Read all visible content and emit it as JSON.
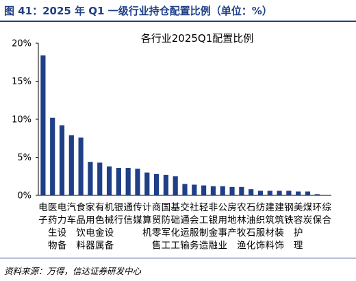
{
  "header": {
    "title": "图 41：2025 年 Q1 一级行业持仓配置比例（单位：%）"
  },
  "footer": {
    "source": "资料来源：万得，信达证券研发中心"
  },
  "chart_data": {
    "type": "bar",
    "title": "各行业2025Q1配置比例",
    "xlabel": "",
    "ylabel": "",
    "ylim": [
      0,
      20
    ],
    "yticks": [
      "0%",
      "5%",
      "10%",
      "15%",
      "20%"
    ],
    "grid": false,
    "legend": "none",
    "bar_color": "#1f3f86",
    "categories": [
      "电子",
      "医药生物",
      "电力设备",
      "汽车",
      "食品饮料",
      "家用电器",
      "有色金属",
      "机械设备",
      "银行",
      "通信",
      "传媒",
      "计算机",
      "商贸零售",
      "国防军工",
      "基础化工",
      "交通运输",
      "社会服务",
      "轻工制造",
      "非银金融",
      "公用事业",
      "房地产",
      "农林牧渔",
      "石油石化",
      "纺织服饰",
      "建筑材料",
      "建筑装饰",
      "钢铁",
      "美容护理",
      "煤炭",
      "环保",
      "综合"
    ],
    "values": [
      18.4,
      10.2,
      9.2,
      7.9,
      7.6,
      4.4,
      4.3,
      3.8,
      3.6,
      3.6,
      3.5,
      3.0,
      2.8,
      2.7,
      2.5,
      1.5,
      1.4,
      1.3,
      1.2,
      1.2,
      1.1,
      1.1,
      0.8,
      0.6,
      0.6,
      0.6,
      0.6,
      0.5,
      0.5,
      0.15,
      0.0
    ],
    "tick_labels": [
      [
        "电",
        "子",
        "",
        ""
      ],
      [
        "医",
        "药",
        "生",
        "物"
      ],
      [
        "电",
        "力",
        "设",
        "备"
      ],
      [
        "汽",
        "车",
        "",
        ""
      ],
      [
        "食",
        "品",
        "饮",
        "料"
      ],
      [
        "家",
        "用",
        "电",
        "器"
      ],
      [
        "有",
        "色",
        "金",
        "属"
      ],
      [
        "机",
        "械",
        "设",
        "备"
      ],
      [
        "银",
        "行",
        "",
        ""
      ],
      [
        "通",
        "信",
        "",
        ""
      ],
      [
        "传",
        "媒",
        "",
        ""
      ],
      [
        "计",
        "算",
        "机",
        ""
      ],
      [
        "商",
        "贸",
        "零",
        "售"
      ],
      [
        "国",
        "防",
        "军",
        "工"
      ],
      [
        "基",
        "础",
        "化",
        "工"
      ],
      [
        "交",
        "通",
        "运",
        "输"
      ],
      [
        "社",
        "会",
        "服",
        "务"
      ],
      [
        "轻",
        "工",
        "制",
        "造"
      ],
      [
        "非",
        "银",
        "金",
        "融"
      ],
      [
        "公",
        "用",
        "事",
        "业"
      ],
      [
        "房",
        "地",
        "产",
        ""
      ],
      [
        "农",
        "林",
        "牧",
        "渔"
      ],
      [
        "石",
        "油",
        "石",
        "化"
      ],
      [
        "纺",
        "织",
        "服",
        "饰"
      ],
      [
        "建",
        "筑",
        "材",
        "料"
      ],
      [
        "建",
        "筑",
        "装",
        "饰"
      ],
      [
        "钢",
        "铁",
        "",
        ""
      ],
      [
        "美",
        "容",
        "护",
        "理"
      ],
      [
        "煤",
        "炭",
        "",
        ""
      ],
      [
        "环",
        "保",
        "",
        ""
      ],
      [
        "综",
        "合",
        "",
        ""
      ]
    ]
  }
}
